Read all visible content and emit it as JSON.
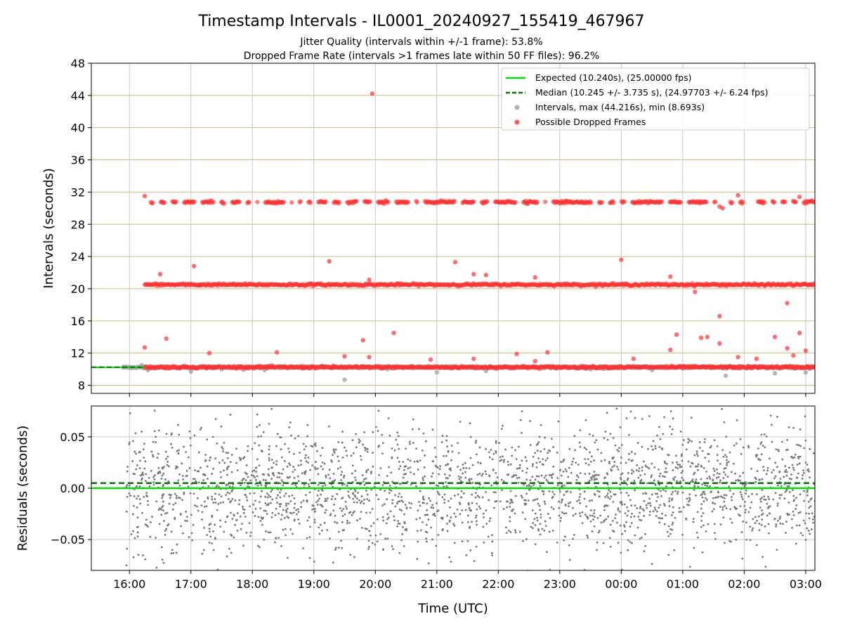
{
  "title": "Timestamp Intervals - IL0001_20240927_155419_467967",
  "subtitle_1": "Jitter Quality (intervals within +/-1 frame): 53.8%",
  "subtitle_2": "Dropped Frame Rate (intervals >1 frames late within 50 FF files): 96.2%",
  "chart_data": [
    {
      "type": "scatter",
      "ylabel": "Intervals (seconds)",
      "x_axis": {
        "unit": "hours since 16:00 UTC (day 1)",
        "range": [
          -0.62,
          11.15
        ],
        "tick_positions": [
          0,
          1,
          2,
          3,
          4,
          5,
          6,
          7,
          8,
          9,
          10,
          11
        ],
        "tick_labels": [
          "16:00",
          "17:00",
          "18:00",
          "19:00",
          "20:00",
          "21:00",
          "22:00",
          "23:00",
          "00:00",
          "01:00",
          "02:00",
          "03:00"
        ]
      },
      "ylim": [
        7,
        48
      ],
      "yticks": [
        8,
        12,
        16,
        20,
        24,
        28,
        32,
        36,
        40,
        44,
        48
      ],
      "grid": true,
      "legend_position": "top-right",
      "legend": [
        {
          "label": "Expected (10.240s), (25.00000 fps)",
          "style": "solid-line",
          "color": "#00dd00"
        },
        {
          "label": "Median (10.245 +/- 3.735 s), (24.97703 +/- 6.24 fps)",
          "style": "dashed-line",
          "color": "#007700"
        },
        {
          "label": "Intervals, max (44.216s), min (8.693s)",
          "style": "marker",
          "color": "#a0a0a0"
        },
        {
          "label": "Possible Dropped Frames",
          "style": "marker",
          "color": "#ff3030"
        }
      ],
      "series": [
        {
          "name": "Expected (10.240s), (25.00000 fps)",
          "kind": "hline",
          "value": 10.24,
          "color": "#00dd00"
        },
        {
          "name": "Median (10.245 +/- 3.735 s), (24.97703 +/- 6.24 fps)",
          "kind": "hline",
          "value": 10.245,
          "color": "#007700"
        },
        {
          "name": "Intervals, max (44.216s), min (8.693s)",
          "kind": "scatter",
          "color": "#a0a0a0",
          "bands": [
            {
              "level": 10.24,
              "x_range": [
                -0.1,
                11.15
              ]
            }
          ],
          "points": [
            [
              -0.1,
              10.24
            ],
            [
              0.2,
              10.5
            ],
            [
              0.3,
              9.9
            ],
            [
              1.0,
              9.7
            ],
            [
              1.5,
              10.0
            ],
            [
              2.2,
              9.9
            ],
            [
              3.5,
              8.69
            ],
            [
              4.2,
              10.0
            ],
            [
              5.0,
              9.6
            ],
            [
              5.8,
              9.8
            ],
            [
              7.5,
              10.0
            ],
            [
              8.5,
              9.9
            ],
            [
              9.7,
              9.2
            ],
            [
              10.5,
              9.5
            ],
            [
              11.0,
              9.6
            ]
          ]
        },
        {
          "name": "Possible Dropped Frames",
          "kind": "scatter",
          "color": "#ff3030",
          "bands": [
            {
              "level": 10.25,
              "x_range": [
                0.25,
                11.15
              ]
            },
            {
              "level": 20.5,
              "x_range": [
                0.25,
                11.15
              ]
            },
            {
              "level": 30.75,
              "x_range": [
                0.35,
                11.15
              ]
            }
          ],
          "points": [
            [
              0.25,
              31.5
            ],
            [
              3.95,
              44.22
            ],
            [
              1.05,
              22.8
            ],
            [
              3.25,
              23.4
            ],
            [
              5.3,
              23.3
            ],
            [
              8.0,
              23.6
            ],
            [
              0.5,
              21.8
            ],
            [
              5.6,
              21.8
            ],
            [
              5.8,
              21.7
            ],
            [
              6.6,
              21.4
            ],
            [
              8.8,
              21.5
            ],
            [
              3.9,
              21.1
            ],
            [
              1.15,
              20.4
            ],
            [
              9.2,
              19.6
            ],
            [
              10.7,
              18.2
            ],
            [
              9.6,
              16.6
            ],
            [
              0.25,
              12.7
            ],
            [
              0.6,
              13.8
            ],
            [
              1.3,
              12.0
            ],
            [
              2.4,
              12.1
            ],
            [
              3.8,
              13.6
            ],
            [
              4.3,
              14.5
            ],
            [
              3.5,
              11.6
            ],
            [
              3.9,
              11.5
            ],
            [
              4.9,
              11.2
            ],
            [
              5.6,
              11.3
            ],
            [
              6.3,
              11.9
            ],
            [
              6.8,
              12.1
            ],
            [
              6.6,
              11.0
            ],
            [
              8.2,
              11.3
            ],
            [
              8.9,
              14.3
            ],
            [
              8.8,
              12.4
            ],
            [
              9.3,
              13.9
            ],
            [
              9.4,
              14.0
            ],
            [
              9.6,
              13.2
            ],
            [
              9.9,
              11.5
            ],
            [
              10.2,
              11.3
            ],
            [
              10.5,
              14.0
            ],
            [
              10.7,
              12.6
            ],
            [
              10.9,
              14.5
            ],
            [
              10.8,
              11.7
            ],
            [
              11.0,
              12.3
            ],
            [
              9.65,
              30.0
            ],
            [
              9.6,
              30.2
            ],
            [
              9.9,
              31.6
            ],
            [
              10.9,
              31.4
            ]
          ]
        }
      ]
    },
    {
      "type": "scatter",
      "xlabel": "Time (UTC)",
      "ylabel": "Residuals (seconds)",
      "x_axis": {
        "unit": "hours since 16:00 UTC (day 1)",
        "range": [
          -0.62,
          11.15
        ],
        "tick_positions": [
          0,
          1,
          2,
          3,
          4,
          5,
          6,
          7,
          8,
          9,
          10,
          11
        ],
        "tick_labels": [
          "16:00",
          "17:00",
          "18:00",
          "19:00",
          "20:00",
          "21:00",
          "22:00",
          "23:00",
          "00:00",
          "01:00",
          "02:00",
          "03:00"
        ]
      },
      "ylim": [
        -0.08,
        0.08
      ],
      "yticks": [
        -0.05,
        0.0,
        0.05
      ],
      "ytick_labels": [
        "−0.05",
        "0.00",
        "0.05"
      ],
      "grid": true,
      "series": [
        {
          "name": "Expected",
          "kind": "hline",
          "value": 0.0,
          "color": "#00dd00"
        },
        {
          "name": "Median",
          "kind": "hline",
          "value": 0.005,
          "color": "#007700"
        },
        {
          "name": "Residuals",
          "kind": "scatter",
          "color": "#777777",
          "x_range": [
            -0.05,
            11.15
          ],
          "spread_sd": 0.03,
          "count": 2400
        }
      ]
    }
  ]
}
